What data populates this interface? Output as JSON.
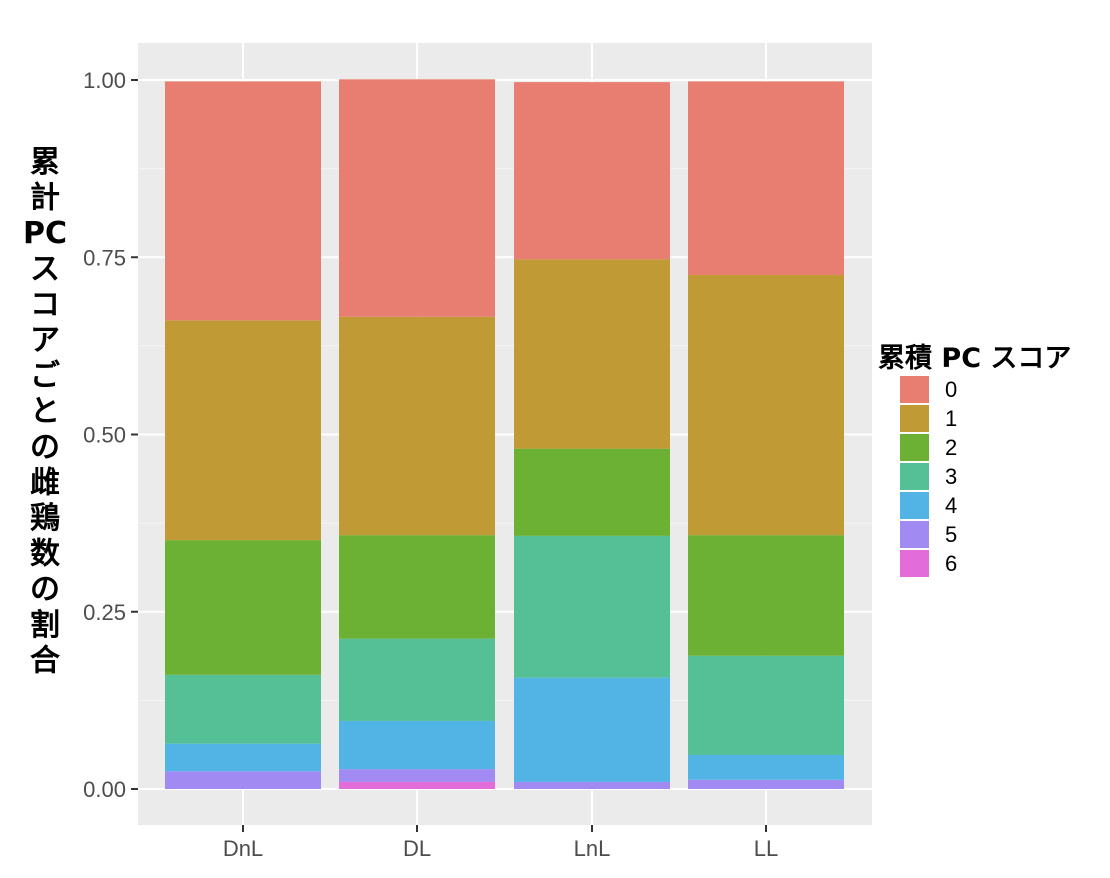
{
  "chart_data": {
    "type": "bar",
    "stacked": true,
    "categories": [
      "DnL",
      "DL",
      "LnL",
      "LL"
    ],
    "ylabel": "累計PCスコアごとの雌鶏数の割合",
    "ylabel_lines": [
      "累",
      "計",
      "PC",
      "ス",
      "コ",
      "ア",
      "ご",
      "と",
      "の",
      "雌",
      "鶏",
      "数",
      "の",
      "割",
      "合"
    ],
    "ylim": [
      0,
      1
    ],
    "yticks": [
      "0.00",
      "0.25",
      "0.50",
      "0.75",
      "1.00"
    ],
    "ytick_values": [
      0,
      0.25,
      0.5,
      0.75,
      1.0
    ],
    "grid": true,
    "legend": {
      "title": "累積 PC スコア",
      "position": "right"
    },
    "series": [
      {
        "name": "0",
        "color": "#E87E72",
        "values": [
          0.337,
          0.335,
          0.25,
          0.273
        ]
      },
      {
        "name": "1",
        "color": "#BF9A35",
        "values": [
          0.31,
          0.308,
          0.267,
          0.367
        ]
      },
      {
        "name": "2",
        "color": "#6DB134",
        "values": [
          0.19,
          0.146,
          0.123,
          0.17
        ]
      },
      {
        "name": "3",
        "color": "#55BF96",
        "values": [
          0.097,
          0.116,
          0.2,
          0.14
        ]
      },
      {
        "name": "4",
        "color": "#52B3E5",
        "values": [
          0.039,
          0.068,
          0.147,
          0.035
        ]
      },
      {
        "name": "5",
        "color": "#A18BF2",
        "values": [
          0.025,
          0.018,
          0.01,
          0.013
        ]
      },
      {
        "name": "6",
        "color": "#E26DD9",
        "values": [
          0.0,
          0.01,
          0.0,
          0.0
        ]
      }
    ]
  }
}
